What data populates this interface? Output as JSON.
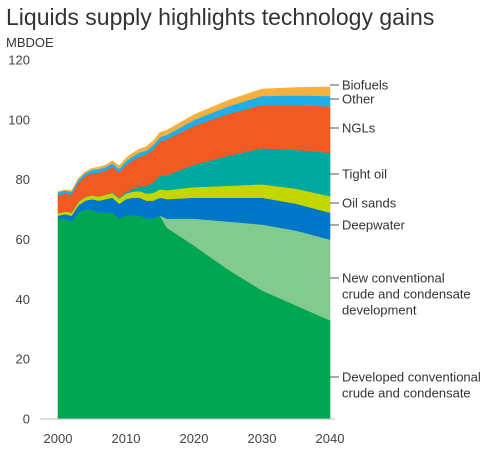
{
  "chart_data": {
    "type": "area",
    "stacked": true,
    "title": "Liquids supply highlights technology gains",
    "ylabel": "MBDOE",
    "xlabel": "",
    "xlim": [
      2000,
      2040
    ],
    "ylim": [
      0,
      120
    ],
    "x_ticks": [
      "2000",
      "2010",
      "2020",
      "2030",
      "2040"
    ],
    "y_ticks": [
      "0",
      "20",
      "40",
      "60",
      "80",
      "100",
      "120"
    ],
    "grid": false,
    "legend": "right",
    "x": [
      2000,
      2001,
      2002,
      2003,
      2004,
      2005,
      2006,
      2007,
      2008,
      2009,
      2010,
      2011,
      2012,
      2013,
      2014,
      2015,
      2016,
      2020,
      2025,
      2030,
      2035,
      2040
    ],
    "series": [
      {
        "name": "Developed conventional crude and condensate",
        "color": "#00a651",
        "values": [
          67,
          67,
          66,
          69,
          70,
          70,
          69,
          69,
          69,
          67,
          68,
          68,
          68,
          67,
          67,
          68,
          64,
          58,
          50,
          43,
          38,
          33
        ]
      },
      {
        "name": "New conventional crude and condensate development",
        "color": "#82ca8f",
        "values": [
          0,
          0,
          0,
          0,
          0,
          0,
          0,
          0,
          0,
          0,
          0,
          0,
          0,
          0,
          0,
          0,
          3,
          9,
          16,
          22,
          25,
          27
        ]
      },
      {
        "name": "Deepwater",
        "color": "#0077c8",
        "values": [
          1,
          1.5,
          2,
          2.5,
          3,
          3.5,
          4,
          4.5,
          5,
          5,
          5.5,
          6,
          6,
          6,
          6,
          6,
          6.5,
          7,
          8,
          9,
          9,
          9
        ]
      },
      {
        "name": "Oil sands",
        "color": "#c4d600",
        "values": [
          0.8,
          0.9,
          1,
          1.1,
          1.2,
          1.3,
          1.4,
          1.5,
          1.6,
          1.7,
          1.9,
          2,
          2.2,
          2.4,
          2.6,
          2.8,
          3,
          3.5,
          4,
          4.5,
          5,
          5.5
        ]
      },
      {
        "name": "Tight oil",
        "color": "#00a9a0",
        "values": [
          0,
          0,
          0,
          0,
          0,
          0,
          0,
          0,
          0.2,
          0.3,
          0.5,
          1,
          1.5,
          2.5,
          3.5,
          4.5,
          5,
          7.5,
          10,
          12,
          13,
          14.5
        ]
      },
      {
        "name": "NGLs",
        "color": "#f15a22",
        "values": [
          6,
          6,
          6,
          6.5,
          7,
          7.5,
          8,
          8,
          8.5,
          8.5,
          9,
          9.5,
          10,
          10.5,
          11,
          11.5,
          12,
          13,
          14,
          14.5,
          15,
          15.5
        ]
      },
      {
        "name": "Other",
        "color": "#1faee8",
        "values": [
          1,
          1,
          1,
          1,
          1,
          1,
          1.2,
          1.2,
          1.2,
          1.2,
          1.3,
          1.3,
          1.4,
          1.4,
          1.5,
          1.5,
          1.5,
          2,
          2.5,
          3,
          3.2,
          3.5
        ]
      },
      {
        "name": "Biofuels",
        "color": "#f6b03f",
        "values": [
          0.2,
          0.2,
          0.3,
          0.3,
          0.4,
          0.5,
          0.6,
          0.7,
          0.8,
          0.9,
          1,
          1.1,
          1.2,
          1.3,
          1.4,
          1.5,
          1.5,
          1.7,
          2,
          2.3,
          2.6,
          3
        ]
      }
    ],
    "labels": [
      {
        "series": "Biofuels",
        "lines": [
          "Biofuels"
        ]
      },
      {
        "series": "Other",
        "lines": [
          "Other"
        ]
      },
      {
        "series": "NGLs",
        "lines": [
          "NGLs"
        ]
      },
      {
        "series": "Tight oil",
        "lines": [
          "Tight oil"
        ]
      },
      {
        "series": "Oil sands",
        "lines": [
          "Oil sands"
        ]
      },
      {
        "series": "Deepwater",
        "lines": [
          "Deepwater"
        ]
      },
      {
        "series": "New conventional crude and condensate development",
        "lines": [
          "New conventional",
          "crude and condensate",
          "development"
        ]
      },
      {
        "series": "Developed conventional crude and condensate",
        "lines": [
          "Developed conventional",
          "crude and condensate"
        ]
      }
    ]
  }
}
